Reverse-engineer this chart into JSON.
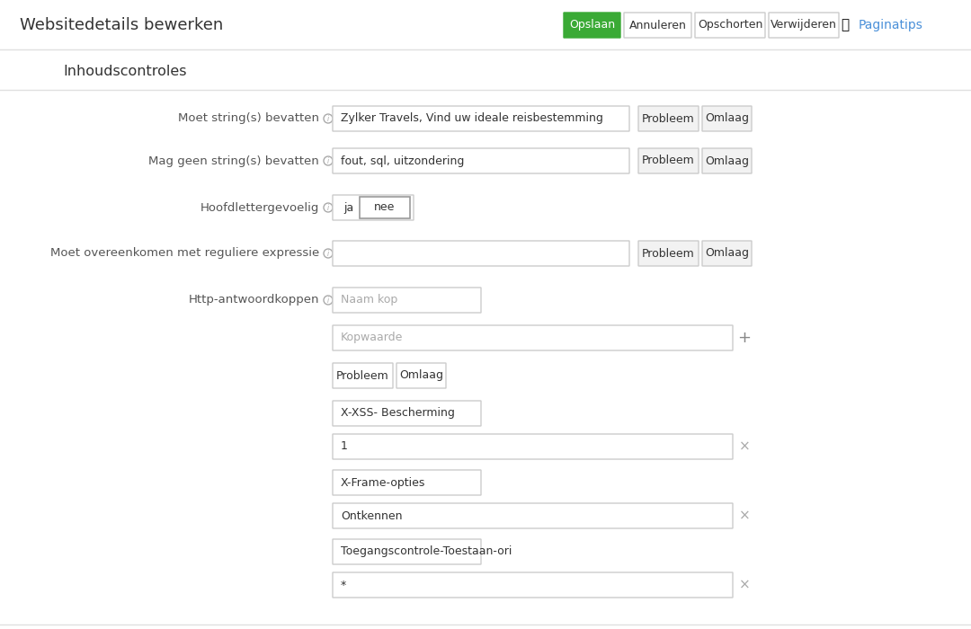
{
  "title": "Websitedetails bewerken",
  "buttons_top": [
    "Opslaan",
    "Annuleren",
    "Opschorten",
    "Verwijderen"
  ],
  "opslaan_color": "#3aaa35",
  "page_tip": "Paginatips",
  "section_title": "Inhoudscontroles",
  "field1_label": "Moet string(s) bevatten",
  "field1_value": "Zylker Travels, Vind uw ideale reisbestemming",
  "field2_label": "Mag geen string(s) bevatten",
  "field2_value": "fout, sql, uitzondering",
  "field3_label": "Hoofdlettergevoelig",
  "field3_opt1": "ja",
  "field3_opt2": "nee",
  "field4_label": "Moet overeenkomen met reguliere expressie",
  "field5_label": "Http-antwoordkoppen",
  "naam_kop_ph": "Naam kop",
  "kopwaarde_ph": "Kopwaarde",
  "entry1_naam": "X-XSS- Bescherming",
  "entry1_val": "1",
  "entry2_naam": "X-Frame-opties",
  "entry2_val": "Ontkennen",
  "entry3_naam": "Toegangscontrole-Toestaan-ori",
  "entry3_val": "*",
  "bg_color": "#ffffff",
  "text_color": "#333333",
  "label_color": "#555555",
  "input_border": "#cccccc",
  "input_bg": "#ffffff",
  "placeholder_color": "#aaaaaa",
  "button_bg": "#f2f2f2",
  "button_border": "#cccccc",
  "divider_color": "#e0e0e0",
  "info_color": "#aaaaaa",
  "link_color": "#4a90d9",
  "x_color": "#aaaaaa"
}
